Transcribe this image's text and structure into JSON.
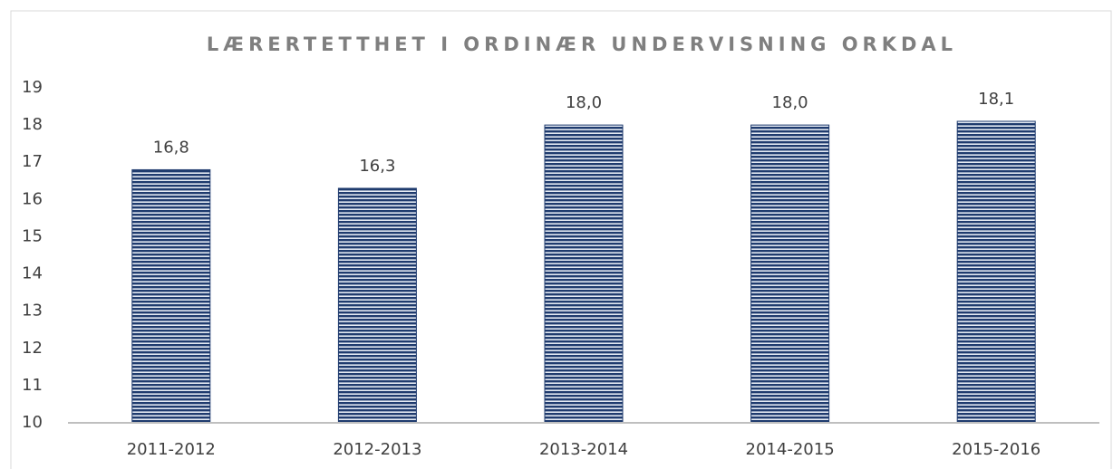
{
  "chart_data": {
    "type": "bar",
    "title": "LÆRERTETTHET I ORDINÆR UNDERVISNING ORKDAL",
    "categories": [
      "2011-2012",
      "2012-2013",
      "2013-2014",
      "2014-2015",
      "2015-2016"
    ],
    "values": [
      16.8,
      16.3,
      18.0,
      18.0,
      18.1
    ],
    "value_labels": [
      "16,8",
      "16,3",
      "18,0",
      "18,0",
      "18,1"
    ],
    "color": "#1f3b6e",
    "ylim": [
      10,
      19
    ],
    "yticks": [
      10,
      11,
      12,
      13,
      14,
      15,
      16,
      17,
      18,
      19
    ],
    "grid": false
  }
}
